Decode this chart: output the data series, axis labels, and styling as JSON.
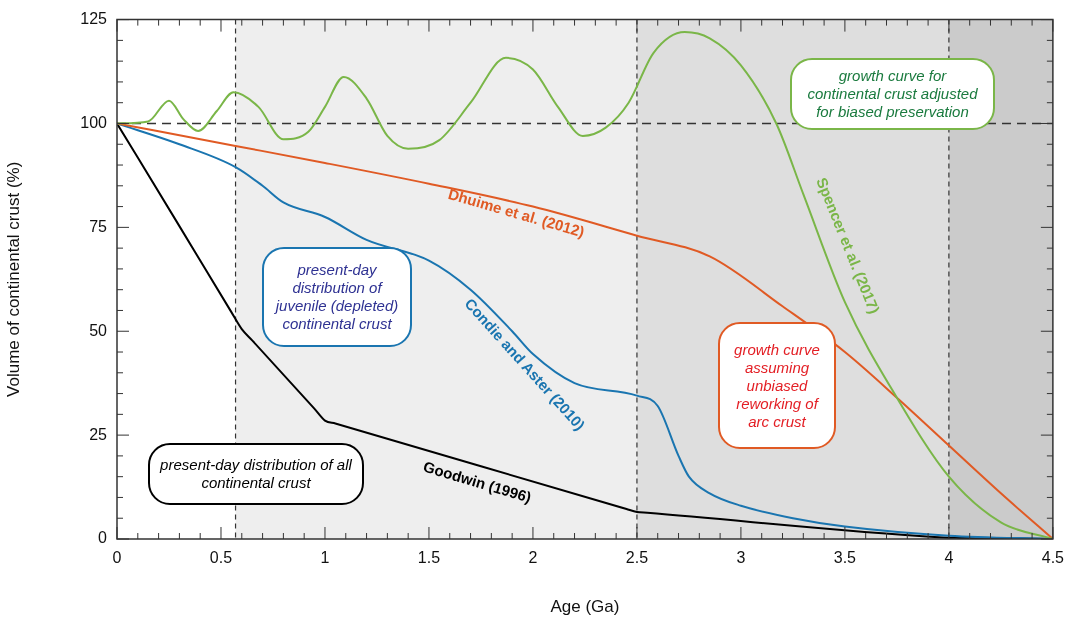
{
  "chart_data": {
    "type": "line",
    "xlabel": "Age (Ga)",
    "ylabel": "Volume of continental crust (%)",
    "xlim": [
      0,
      4.5
    ],
    "ylim": [
      0,
      125
    ],
    "xticks": [
      0,
      {
        "value": 0.1,
        "label": null
      },
      {
        "value": 0.2,
        "label": null
      },
      {
        "value": 0.3,
        "label": null
      },
      {
        "value": 0.4,
        "label": null
      },
      0.5,
      {
        "value": 0.6,
        "label": null
      },
      {
        "value": 0.7,
        "label": null
      },
      {
        "value": 0.8,
        "label": null
      },
      {
        "value": 0.9,
        "label": null
      },
      1,
      {
        "value": 1.1,
        "label": null
      },
      {
        "value": 1.2,
        "label": null
      },
      {
        "value": 1.3,
        "label": null
      },
      {
        "value": 1.4,
        "label": null
      },
      1.5,
      {
        "value": 1.6,
        "label": null
      },
      {
        "value": 1.7,
        "label": null
      },
      {
        "value": 1.8,
        "label": null
      },
      {
        "value": 1.9,
        "label": null
      },
      2,
      {
        "value": 2.1,
        "label": null
      },
      {
        "value": 2.2,
        "label": null
      },
      {
        "value": 2.3,
        "label": null
      },
      {
        "value": 2.4,
        "label": null
      },
      2.5,
      {
        "value": 2.6,
        "label": null
      },
      {
        "value": 2.7,
        "label": null
      },
      {
        "value": 2.8,
        "label": null
      },
      {
        "value": 2.9,
        "label": null
      },
      3,
      {
        "value": 3.1,
        "label": null
      },
      {
        "value": 3.2,
        "label": null
      },
      {
        "value": 3.3,
        "label": null
      },
      {
        "value": 3.4,
        "label": null
      },
      3.5,
      {
        "value": 3.6,
        "label": null
      },
      {
        "value": 3.7,
        "label": null
      },
      {
        "value": 3.8,
        "label": null
      },
      {
        "value": 3.9,
        "label": null
      },
      4,
      {
        "value": 4.1,
        "label": null
      },
      {
        "value": 4.2,
        "label": null
      },
      {
        "value": 4.3,
        "label": null
      },
      {
        "value": 4.4,
        "label": null
      },
      4.5
    ],
    "yticks": [
      0,
      {
        "value": 5,
        "label": null
      },
      {
        "value": 10,
        "label": null
      },
      {
        "value": 15,
        "label": null
      },
      {
        "value": 20,
        "label": null
      },
      25,
      {
        "value": 30,
        "label": null
      },
      {
        "value": 35,
        "label": null
      },
      {
        "value": 40,
        "label": null
      },
      {
        "value": 45,
        "label": null
      },
      50,
      {
        "value": 55,
        "label": null
      },
      {
        "value": 60,
        "label": null
      },
      {
        "value": 65,
        "label": null
      },
      {
        "value": 70,
        "label": null
      },
      75,
      {
        "value": 80,
        "label": null
      },
      {
        "value": 85,
        "label": null
      },
      {
        "value": 90,
        "label": null
      },
      {
        "value": 95,
        "label": null
      },
      100,
      {
        "value": 105,
        "label": null
      },
      {
        "value": 110,
        "label": null
      },
      {
        "value": 115,
        "label": null
      },
      {
        "value": 120,
        "label": null
      },
      125
    ],
    "series": [
      {
        "name": "Spencer et al. (2017)",
        "color": "#7ab648",
        "x": [
          0,
          0.15,
          0.25,
          0.32,
          0.39,
          0.48,
          0.56,
          0.68,
          0.8,
          0.92,
          1.0,
          1.09,
          1.2,
          1.3,
          1.4,
          1.55,
          1.7,
          1.87,
          2.0,
          2.12,
          2.24,
          2.35,
          2.46,
          2.58,
          2.73,
          2.85,
          3.0,
          3.17,
          3.3,
          3.5,
          3.75,
          4.0,
          4.25,
          4.5
        ],
        "values": [
          100,
          100.5,
          105.5,
          101,
          98.2,
          103,
          107.5,
          104,
          96.2,
          98,
          104,
          111.2,
          106,
          97,
          93.9,
          96,
          105,
          115.8,
          113,
          104,
          97,
          99,
          105,
          117,
          122,
          120.5,
          114,
          100,
          83,
          57,
          34,
          15,
          4,
          0
        ]
      },
      {
        "name": "Dhuime et al. (2012)",
        "color": "#e05a24",
        "x": [
          0,
          0.57,
          1.0,
          1.5,
          2.0,
          2.5,
          2.85,
          3.2,
          3.5,
          3.75,
          4.0,
          4.25,
          4.5
        ],
        "values": [
          100,
          94.6,
          90.5,
          85.5,
          80,
          73,
          68,
          56,
          45,
          34,
          22.5,
          11,
          0
        ]
      },
      {
        "name": "Condie and Aster (2010)",
        "color": "#1a75b0",
        "x": [
          0,
          0.3,
          0.57,
          0.7,
          0.8,
          1.0,
          1.2,
          1.5,
          1.7,
          1.9,
          2.0,
          2.2,
          2.5,
          2.6,
          2.7,
          2.75,
          2.85,
          3.0,
          3.25,
          3.5,
          4.0,
          4.5
        ],
        "values": [
          100,
          95,
          89.5,
          85,
          81,
          77.5,
          72,
          67,
          60,
          50,
          44.5,
          37.5,
          34.5,
          32,
          20,
          15,
          11,
          8,
          5,
          3,
          0.8,
          0
        ]
      },
      {
        "name": "Goodwin (1996)",
        "color": "#000000",
        "x": [
          0,
          0.3,
          0.55,
          0.6,
          0.65,
          0.95,
          1.0,
          1.05,
          2.45,
          2.5,
          2.55,
          3.95,
          4.0,
          4.05,
          4.5
        ],
        "values": [
          100,
          75.3,
          54.6,
          50.5,
          47.8,
          31.3,
          28.5,
          27.8,
          7.2,
          6.5,
          6.3,
          0.4,
          0.3,
          0.27,
          0
        ]
      }
    ],
    "bands": [
      {
        "axis": "x",
        "from": 0.57,
        "to": 2.5,
        "color": "#eeeeee"
      },
      {
        "axis": "x",
        "from": 2.5,
        "to": 4,
        "color": "#dedede"
      },
      {
        "axis": "x",
        "from": 4,
        "to": 4.5,
        "color": "#cbcbcb"
      }
    ],
    "ref_lines": [
      {
        "axis": "y",
        "value": 100,
        "line_style": "dashed",
        "color": "#333333"
      },
      {
        "axis": "x",
        "value": 0.57,
        "line_style": "dashed",
        "color": "#333333"
      },
      {
        "axis": "x",
        "value": 2.5,
        "line_style": "dashed",
        "color": "#333333"
      },
      {
        "axis": "x",
        "value": 4,
        "line_style": "dashed",
        "color": "#333333"
      }
    ],
    "annotations": [
      "growth curve for continental crust adjusted for biased preservation",
      "present-day distribution of juvenile (depleted) continental crust",
      "growth curve assuming unbiased reworking of arc crust",
      "present-day distribution of all continental crust"
    ],
    "legend": false,
    "grid": false,
    "marker": "none",
    "line_style": "solid"
  }
}
